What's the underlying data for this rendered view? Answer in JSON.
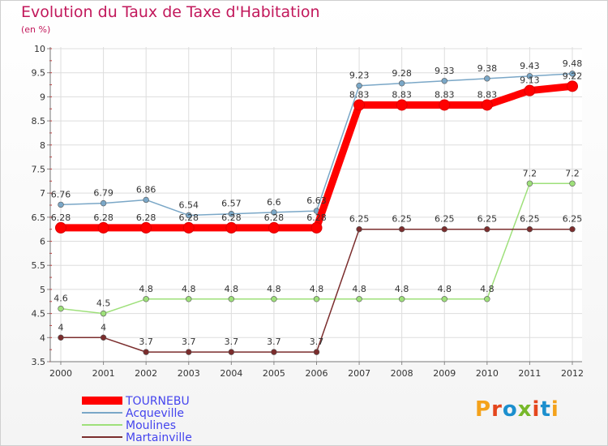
{
  "header": {
    "title": "Evolution du Taux de Taxe d'Habitation",
    "subtitle": "(en %)"
  },
  "logo": {
    "text": "Proxiti",
    "colors": [
      "#f4a21b",
      "#e4461d",
      "#1c8fce",
      "#77b82a",
      "#e4461d",
      "#1c8fce",
      "#f4a21b"
    ]
  },
  "chart_data": {
    "type": "line",
    "title": "Evolution du Taux de Taxe d'Habitation",
    "ylabel": "(en %)",
    "xlabel": "",
    "ylim": [
      3.5,
      10
    ],
    "yticks": [
      "3.5",
      "4",
      "4.5",
      "5",
      "5.5",
      "6",
      "6.5",
      "7",
      "7.5",
      "8",
      "8.5",
      "9",
      "9.5",
      "10"
    ],
    "categories": [
      "2000",
      "2001",
      "2002",
      "2003",
      "2004",
      "2005",
      "2006",
      "2007",
      "2008",
      "2009",
      "2010",
      "2011",
      "2012"
    ],
    "legend_position": "bottom-left",
    "series": [
      {
        "name": "TOURNEBU",
        "color": "#ff0000",
        "legend_color": "#4444ee",
        "values": [
          6.28,
          6.28,
          6.28,
          6.28,
          6.28,
          6.28,
          6.28,
          8.83,
          8.83,
          8.83,
          8.83,
          9.13,
          9.22
        ],
        "labels": [
          "6.28",
          "6.28",
          "6.28",
          "6.28",
          "6.28",
          "6.28",
          "6.28",
          "8.83",
          "8.83",
          "8.83",
          "8.83",
          "9.13",
          "9.22"
        ]
      },
      {
        "name": "Acqueville",
        "color": "#7aa7c7",
        "legend_color": "#4444ee",
        "values": [
          6.76,
          6.79,
          6.86,
          6.54,
          6.57,
          6.6,
          6.63,
          9.23,
          9.28,
          9.33,
          9.38,
          9.43,
          9.48
        ],
        "labels": [
          "6.76",
          "6.79",
          "6.86",
          "6.54",
          "6.57",
          "6.6",
          "6.63",
          "9.23",
          "9.28",
          "9.33",
          "9.38",
          "9.43",
          "9.48"
        ]
      },
      {
        "name": "Moulines",
        "color": "#9ee07a",
        "legend_color": "#4444ee",
        "values": [
          4.6,
          4.5,
          4.8,
          4.8,
          4.8,
          4.8,
          4.8,
          4.8,
          4.8,
          4.8,
          4.8,
          7.2,
          7.2
        ],
        "labels": [
          "4.6",
          "4.5",
          "4.8",
          "4.8",
          "4.8",
          "4.8",
          "4.8",
          "4.8",
          "4.8",
          "4.8",
          "4.8",
          "7.2",
          "7.2"
        ]
      },
      {
        "name": "Martainville",
        "color": "#7b2d2d",
        "legend_color": "#4444ee",
        "values": [
          4,
          4,
          3.7,
          3.7,
          3.7,
          3.7,
          3.7,
          6.25,
          6.25,
          6.25,
          6.25,
          6.25,
          6.25
        ],
        "labels": [
          "4",
          "4",
          "3.7",
          "3.7",
          "3.7",
          "3.7",
          "3.7",
          "6.25",
          "6.25",
          "6.25",
          "6.25",
          "6.25",
          "6.25"
        ]
      }
    ]
  }
}
